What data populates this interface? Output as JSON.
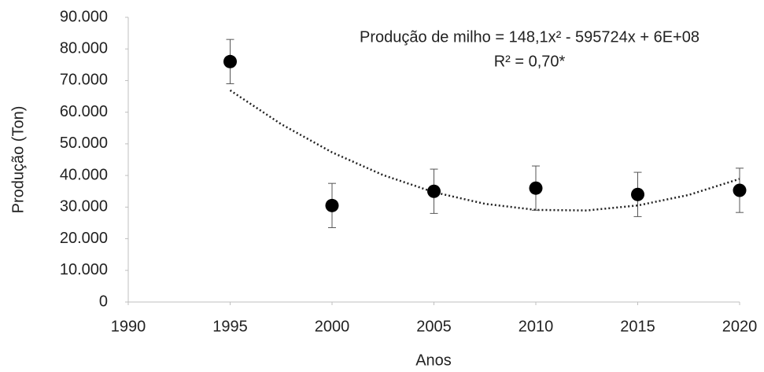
{
  "chart_data": {
    "type": "scatter",
    "equation": "Produção de milho  = 148,1x² - 595724x + 6E+08",
    "r_squared": "R² = 0,70*",
    "x_label": "Anos",
    "y_label": "Produção (Ton)",
    "x": [
      1995,
      2000,
      2005,
      2010,
      2015,
      2020
    ],
    "values": [
      76000,
      30500,
      35000,
      36000,
      34000,
      35300
    ],
    "errors": [
      7000,
      7000,
      7000,
      7000,
      7000,
      7000
    ],
    "color": "#000000",
    "trendline": {
      "x": [
        1995,
        1997.5,
        2000,
        2002.5,
        2005,
        2007.5,
        2010,
        2012.5,
        2015,
        2017.5,
        2020
      ],
      "values": [
        66915,
        56240,
        47315,
        40140,
        34715,
        31040,
        29115,
        28940,
        30515,
        33840,
        38915
      ]
    },
    "xlim": [
      1990,
      2020
    ],
    "xticks": [
      1990,
      1995,
      2000,
      2005,
      2010,
      2015,
      2020
    ],
    "ylim": [
      0,
      90000
    ],
    "yticks": [
      0,
      {
        "value": 10000,
        "label": "10.000"
      },
      {
        "value": 20000,
        "label": "20.000"
      },
      {
        "value": 30000,
        "label": "30.000"
      },
      {
        "value": 40000,
        "label": "40.000"
      },
      {
        "value": 50000,
        "label": "50.000"
      },
      {
        "value": 60000,
        "label": "60.000"
      },
      {
        "value": 70000,
        "label": "70.000"
      },
      {
        "value": 80000,
        "label": "80.000"
      },
      {
        "value": 90000,
        "label": "90.000"
      }
    ]
  }
}
